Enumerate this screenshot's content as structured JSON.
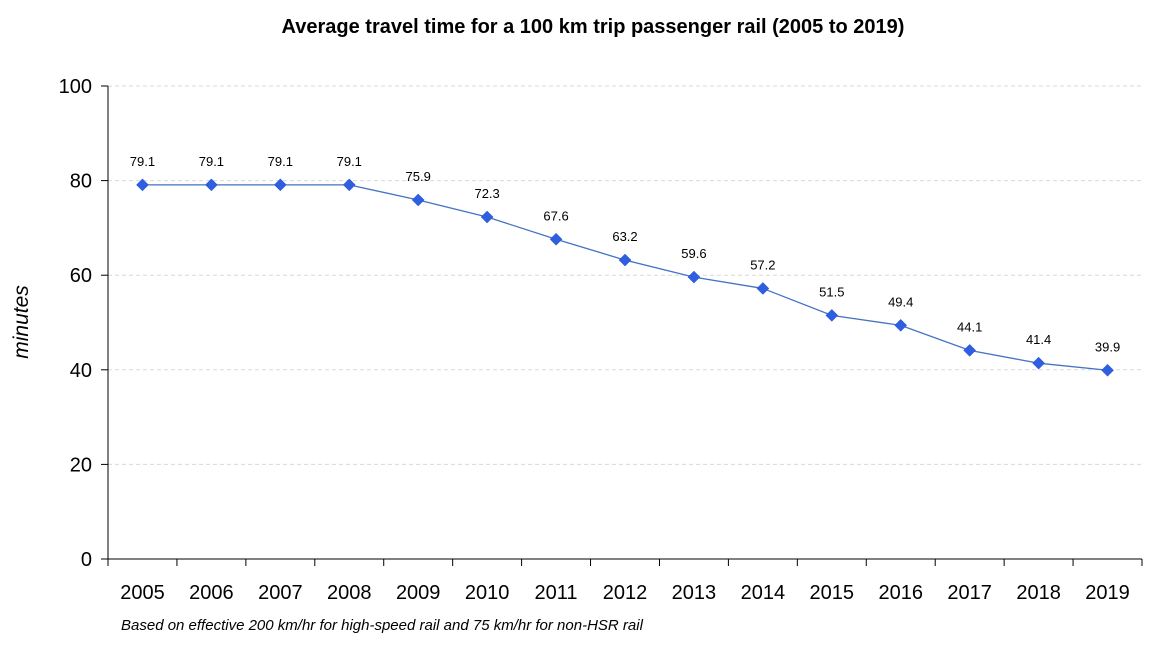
{
  "chart_data": {
    "type": "line",
    "title": "Average travel time for a 100 km trip passenger rail (2005 to 2019)",
    "ylabel": "minutes",
    "xlabel": "",
    "footnote": "Based on effective 200 km/hr for high-speed rail and 75 km/hr for non-HSR rail",
    "categories": [
      "2005",
      "2006",
      "2007",
      "2008",
      "2009",
      "2010",
      "2011",
      "2012",
      "2013",
      "2014",
      "2015",
      "2016",
      "2017",
      "2018",
      "2019"
    ],
    "values": [
      79.1,
      79.1,
      79.1,
      79.1,
      75.9,
      72.3,
      67.6,
      63.2,
      59.6,
      57.2,
      51.5,
      49.4,
      44.1,
      41.4,
      39.9
    ],
    "data_labels": [
      "79.1",
      "79.1",
      "79.1",
      "79.1",
      "75.9",
      "72.3",
      "67.6",
      "63.2",
      "59.6",
      "57.2",
      "51.5",
      "49.4",
      "44.1",
      "41.4",
      "39.9"
    ],
    "ylim": [
      0,
      100
    ],
    "yticks": [
      "0",
      "20",
      "40",
      "60",
      "80",
      "100"
    ],
    "grid": true,
    "legend": "none",
    "colors": {
      "line": "#4472C4",
      "marker": "#2F5FE0",
      "grid": "#D9D9D9",
      "axis": "#000000"
    }
  }
}
